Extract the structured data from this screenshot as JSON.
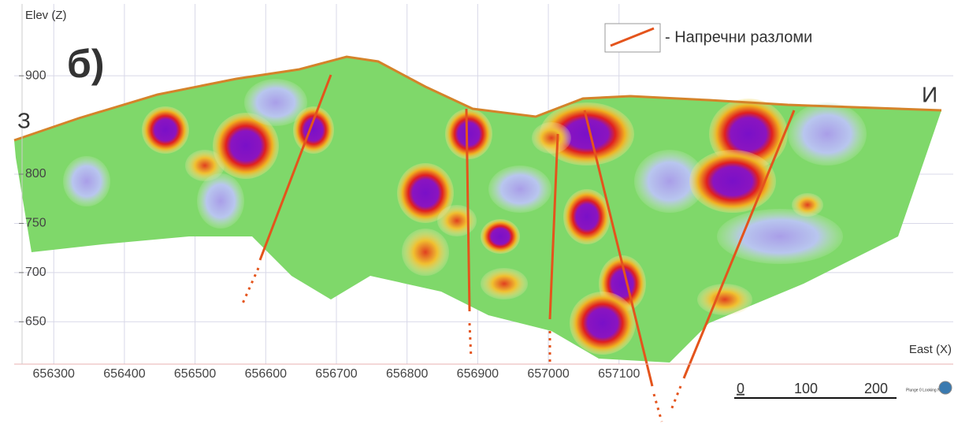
{
  "chart_data": {
    "type": "section",
    "y_label": "Elev (Z)",
    "x_label": "East (X)",
    "panel_label": "б)",
    "west_label": "З",
    "east_label": "И",
    "legend_label": "- Напречни разломи",
    "orientation_note": "Plunge 0 Looking North",
    "scale_labels": [
      "0",
      "100",
      "200"
    ],
    "xlim": [
      656244,
      657573
    ],
    "ylim": [
      607,
      973
    ],
    "xticks": [
      656300,
      656400,
      656500,
      656600,
      656700,
      656800,
      656900,
      657000,
      657100
    ],
    "yticks": [
      650,
      700,
      750,
      800,
      900
    ],
    "grid": true
  }
}
